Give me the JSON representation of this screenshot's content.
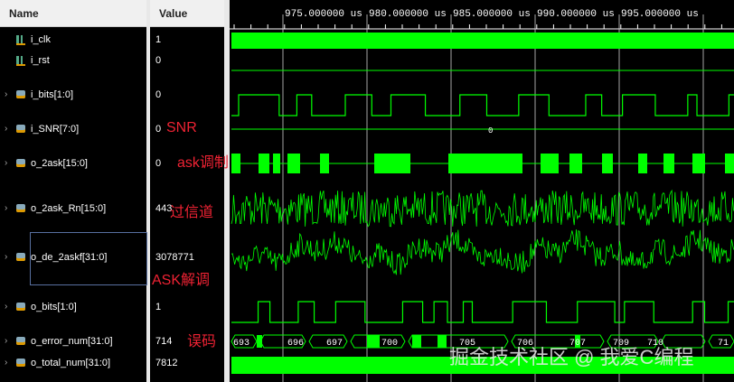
{
  "headers": {
    "name": "Name",
    "value": "Value"
  },
  "signals": [
    {
      "name": "i_clk",
      "value": "1",
      "kind": "bit",
      "expand": false
    },
    {
      "name": "i_rst",
      "value": "0",
      "kind": "bit",
      "expand": false
    },
    {
      "name": "i_bits[1:0]",
      "value": "0",
      "kind": "bus",
      "expand": true
    },
    {
      "name": "i_SNR[7:0]",
      "value": "0",
      "kind": "bus",
      "expand": true
    },
    {
      "name": "o_2ask[15:0]",
      "value": "0",
      "kind": "bus",
      "expand": true
    },
    {
      "name": "o_2ask_Rn[15:0]",
      "value": "443",
      "kind": "bus",
      "expand": true
    },
    {
      "name": "o_de_2askf[31:0]",
      "value": "3078771",
      "kind": "bus",
      "expand": true
    },
    {
      "name": "o_bits[1:0]",
      "value": "1",
      "kind": "bus",
      "expand": true
    },
    {
      "name": "o_error_num[31:0]",
      "value": "714",
      "kind": "bus",
      "expand": true
    },
    {
      "name": "o_total_num[31:0]",
      "value": "7812",
      "kind": "bus",
      "expand": true
    }
  ],
  "annotations": {
    "snr": "SNR",
    "ask_mod": "ask调制",
    "channel": "过信道",
    "ask_demod": "ASK解调",
    "error": "误码"
  },
  "ruler": [
    "975.000000 us",
    "980.000000 us",
    "985.000000 us",
    "990.000000 us",
    "995.000000 us"
  ],
  "snr_bus_value": "0",
  "error_bus_values": [
    "693",
    "696",
    "697",
    "700",
    "705",
    "706",
    "707",
    "709",
    "710",
    "71"
  ],
  "watermark": "掘金技术社区 @ 我爱C编程",
  "colors": {
    "wave": "#00ff00",
    "annotation": "#e82233",
    "grid": "#d0d0d0"
  }
}
